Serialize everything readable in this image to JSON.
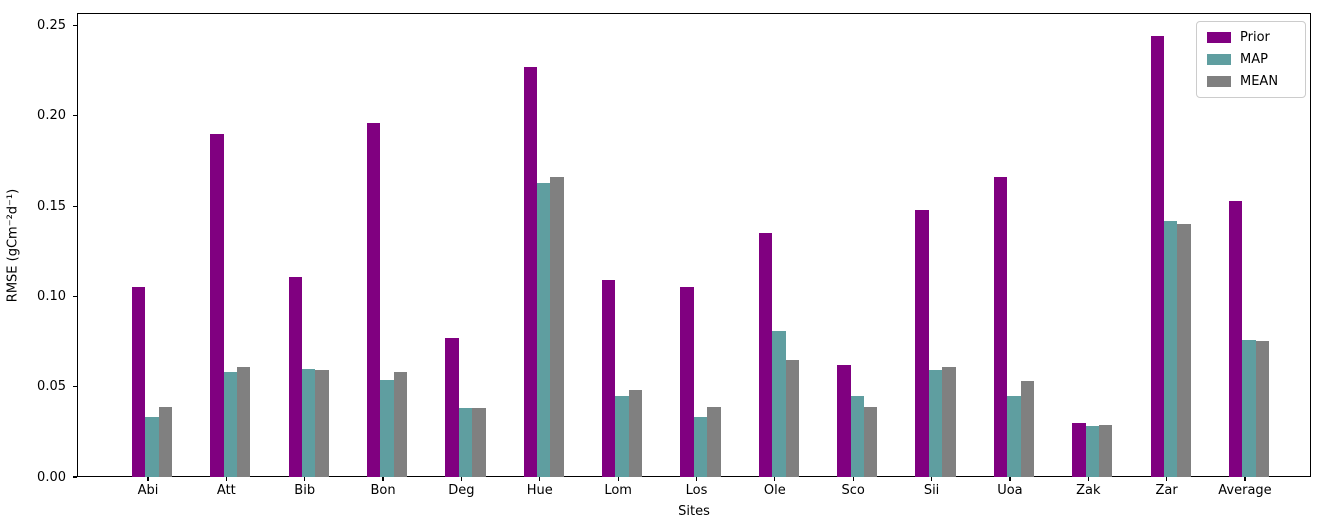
{
  "chart_data": {
    "type": "bar",
    "xlabel": "Sites",
    "ylabel": "RMSE (gCm⁻²d⁻¹)",
    "ylim": [
      0,
      0.257
    ],
    "grid": false,
    "legend_position": "upper right",
    "ytick_values": [
      0,
      0.05,
      0.1,
      0.15,
      0.2,
      0.25
    ],
    "ytick_labels": [
      "0.00",
      "0.05",
      "0.10",
      "0.15",
      "0.20",
      "0.25"
    ],
    "categories": [
      "Abi",
      "Att",
      "Bib",
      "Bon",
      "Deg",
      "Hue",
      "Lom",
      "Los",
      "Ole",
      "Sco",
      "Sii",
      "Uoa",
      "Zak",
      "Zar",
      "Average"
    ],
    "series": [
      {
        "name": "Prior",
        "color": "#800080",
        "values": [
          0.105,
          0.19,
          0.111,
          0.196,
          0.077,
          0.227,
          0.109,
          0.105,
          0.135,
          0.062,
          0.148,
          0.166,
          0.03,
          0.244,
          0.153
        ]
      },
      {
        "name": "MAP",
        "color": "#5f9ea0",
        "values": [
          0.033,
          0.058,
          0.06,
          0.054,
          0.038,
          0.163,
          0.045,
          0.033,
          0.081,
          0.045,
          0.059,
          0.045,
          0.028,
          0.142,
          0.076
        ]
      },
      {
        "name": "MEAN",
        "color": "#808080",
        "values": [
          0.039,
          0.061,
          0.059,
          0.058,
          0.038,
          0.166,
          0.048,
          0.039,
          0.065,
          0.039,
          0.061,
          0.053,
          0.029,
          0.14,
          0.0755
        ]
      }
    ]
  }
}
